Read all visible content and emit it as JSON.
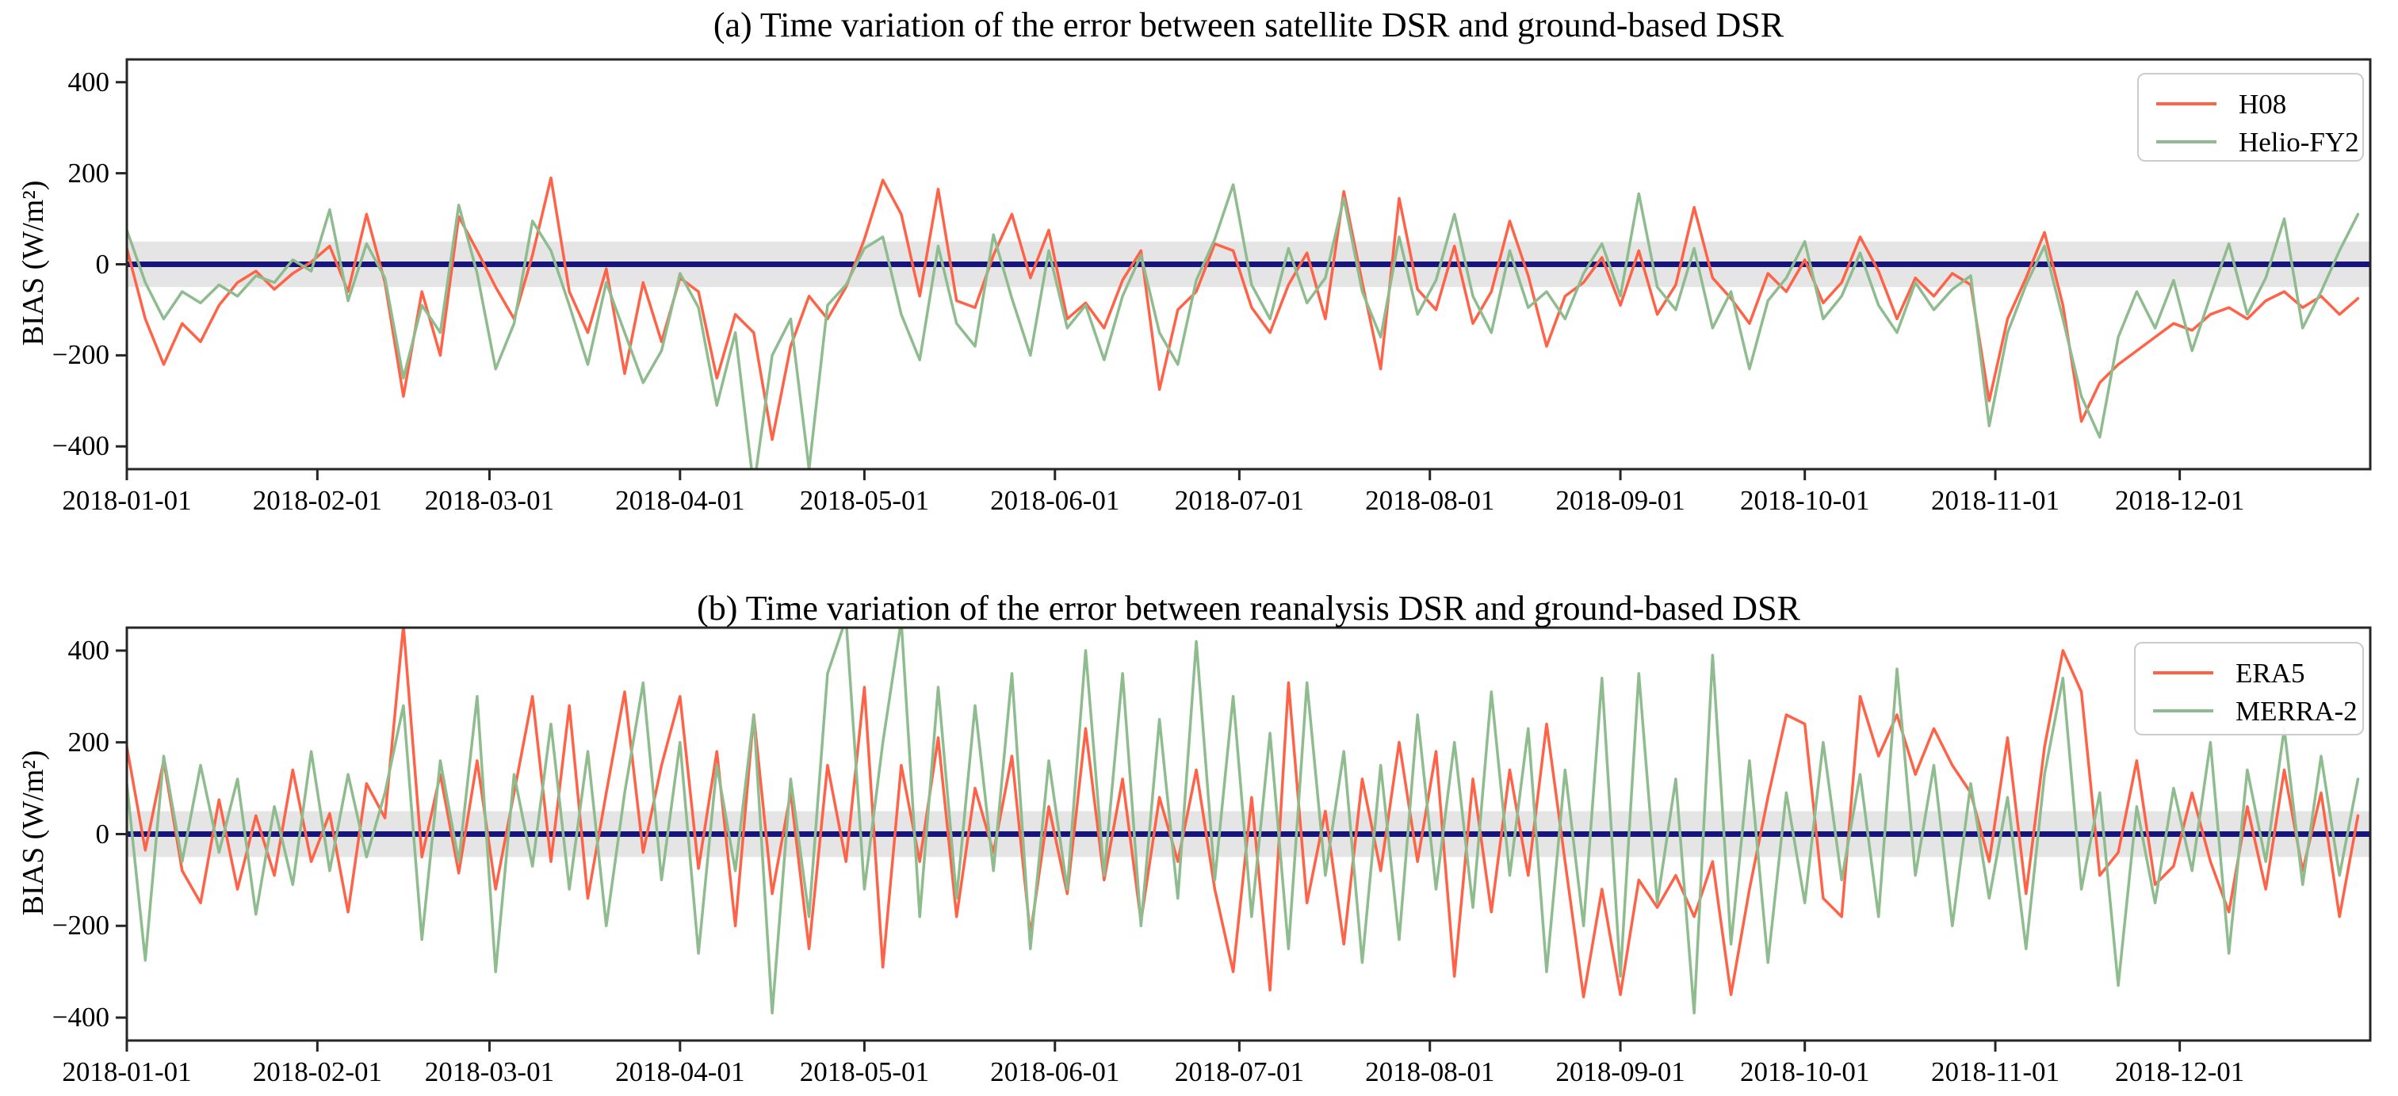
{
  "figure": {
    "background_color": "#ffffff",
    "axis_color": "#262626"
  },
  "chart_data": [
    {
      "type": "line",
      "panel": "a",
      "title": "(a) Time variation of the error between satellite DSR and ground-based DSR",
      "ylabel": "BIAS (W/m²)",
      "ylim": [
        -450,
        450
      ],
      "yticks": [
        {
          "value": 400,
          "label": "400"
        },
        {
          "value": 200,
          "label": "200"
        },
        {
          "value": 0,
          "label": "0"
        },
        {
          "value": -200,
          "label": "−200"
        },
        {
          "value": -400,
          "label": "−400"
        }
      ],
      "xlim_days": [
        1,
        366
      ],
      "xticks": [
        {
          "day": 1,
          "label": "2018-01-01"
        },
        {
          "day": 32,
          "label": "2018-02-01"
        },
        {
          "day": 60,
          "label": "2018-03-01"
        },
        {
          "day": 91,
          "label": "2018-04-01"
        },
        {
          "day": 121,
          "label": "2018-05-01"
        },
        {
          "day": 152,
          "label": "2018-06-01"
        },
        {
          "day": 182,
          "label": "2018-07-01"
        },
        {
          "day": 213,
          "label": "2018-08-01"
        },
        {
          "day": 244,
          "label": "2018-09-01"
        },
        {
          "day": 274,
          "label": "2018-10-01"
        },
        {
          "day": 305,
          "label": "2018-11-01"
        },
        {
          "day": 335,
          "label": "2018-12-01"
        }
      ],
      "grid": false,
      "legend_position": "upper right",
      "zero_line": {
        "value": 0,
        "color": "#15157d"
      },
      "tolerance_band": {
        "low": -50,
        "high": 50,
        "color": "#d3d3d3",
        "opacity": 0.6
      },
      "x_start_day": 1,
      "x_step_days": 3,
      "series": [
        {
          "name": "H08",
          "color": "#ff6347",
          "values": [
            35,
            -120,
            -220,
            -130,
            -170,
            -90,
            -40,
            -15,
            -55,
            -20,
            5,
            40,
            -60,
            110,
            -40,
            -290,
            -60,
            -200,
            105,
            30,
            -50,
            -120,
            20,
            190,
            -60,
            -150,
            -10,
            -240,
            -40,
            -170,
            -30,
            -60,
            -250,
            -110,
            -150,
            -385,
            -180,
            -70,
            -120,
            -50,
            55,
            185,
            110,
            -70,
            165,
            -80,
            -95,
            20,
            110,
            -30,
            75,
            -120,
            -85,
            -140,
            -35,
            30,
            -275,
            -100,
            -60,
            45,
            30,
            -95,
            -150,
            -45,
            25,
            -120,
            160,
            -40,
            -230,
            145,
            -55,
            -100,
            40,
            -130,
            -60,
            95,
            -25,
            -180,
            -70,
            -40,
            15,
            -90,
            30,
            -110,
            -45,
            125,
            -30,
            -75,
            -130,
            -20,
            -60,
            10,
            -85,
            -40,
            60,
            -15,
            -120,
            -30,
            -70,
            -20,
            -45,
            -300,
            -120,
            -30,
            70,
            -90,
            -345,
            -260,
            -220,
            -190,
            -160,
            -130,
            -145,
            -110,
            -95,
            -120,
            -80,
            -60,
            -95,
            -70,
            -110,
            -75
          ]
        },
        {
          "name": "Helio-FY2",
          "color": "#8fbc8f",
          "values": [
            75,
            -40,
            -120,
            -60,
            -85,
            -45,
            -70,
            -25,
            -40,
            10,
            -15,
            120,
            -80,
            45,
            -30,
            -250,
            -90,
            -150,
            130,
            -20,
            -230,
            -130,
            95,
            30,
            -90,
            -220,
            -40,
            -150,
            -260,
            -190,
            -20,
            -95,
            -310,
            -150,
            -490,
            -200,
            -120,
            -450,
            -90,
            -45,
            35,
            60,
            -110,
            -210,
            40,
            -130,
            -180,
            65,
            -75,
            -200,
            30,
            -140,
            -90,
            -210,
            -70,
            20,
            -150,
            -220,
            -35,
            55,
            175,
            -45,
            -120,
            35,
            -85,
            -30,
            145,
            -60,
            -160,
            60,
            -110,
            -35,
            110,
            -70,
            -150,
            30,
            -95,
            -60,
            -120,
            -20,
            45,
            -70,
            155,
            -50,
            -100,
            35,
            -140,
            -60,
            -230,
            -80,
            -30,
            50,
            -120,
            -70,
            25,
            -90,
            -150,
            -40,
            -100,
            -55,
            -25,
            -355,
            -150,
            -45,
            40,
            -120,
            -290,
            -380,
            -160,
            -60,
            -140,
            -35,
            -190,
            -70,
            45,
            -110,
            -30,
            100,
            -140,
            -60,
            30,
            110
          ]
        }
      ]
    },
    {
      "type": "line",
      "panel": "b",
      "title": "(b) Time variation of the error between reanalysis DSR and ground-based DSR",
      "ylabel": "BIAS (W/m²)",
      "ylim": [
        -450,
        450
      ],
      "yticks": [
        {
          "value": 400,
          "label": "400"
        },
        {
          "value": 200,
          "label": "200"
        },
        {
          "value": 0,
          "label": "0"
        },
        {
          "value": -200,
          "label": "−200"
        },
        {
          "value": -400,
          "label": "−400"
        }
      ],
      "xlim_days": [
        1,
        366
      ],
      "xticks": [
        {
          "day": 1,
          "label": "2018-01-01"
        },
        {
          "day": 32,
          "label": "2018-02-01"
        },
        {
          "day": 60,
          "label": "2018-03-01"
        },
        {
          "day": 91,
          "label": "2018-04-01"
        },
        {
          "day": 121,
          "label": "2018-05-01"
        },
        {
          "day": 152,
          "label": "2018-06-01"
        },
        {
          "day": 182,
          "label": "2018-07-01"
        },
        {
          "day": 213,
          "label": "2018-08-01"
        },
        {
          "day": 244,
          "label": "2018-09-01"
        },
        {
          "day": 274,
          "label": "2018-10-01"
        },
        {
          "day": 305,
          "label": "2018-11-01"
        },
        {
          "day": 335,
          "label": "2018-12-01"
        }
      ],
      "grid": false,
      "legend_position": "upper right",
      "zero_line": {
        "value": 0,
        "color": "#15157d"
      },
      "tolerance_band": {
        "low": -50,
        "high": 50,
        "color": "#d3d3d3",
        "opacity": 0.6
      },
      "x_start_day": 1,
      "x_step_days": 3,
      "series": [
        {
          "name": "ERA5",
          "color": "#ff6347",
          "values": [
            190,
            -35,
            160,
            -80,
            -150,
            75,
            -120,
            40,
            -90,
            140,
            -60,
            45,
            -170,
            110,
            35,
            455,
            -50,
            130,
            -85,
            160,
            -120,
            90,
            300,
            -60,
            280,
            -140,
            90,
            310,
            -40,
            150,
            300,
            -75,
            180,
            -200,
            260,
            -130,
            90,
            -250,
            150,
            -60,
            320,
            -290,
            150,
            -60,
            210,
            -180,
            100,
            -40,
            170,
            -220,
            60,
            -130,
            230,
            -100,
            120,
            -190,
            80,
            -60,
            140,
            -120,
            -300,
            80,
            -340,
            330,
            -150,
            50,
            -240,
            120,
            -80,
            200,
            -60,
            180,
            -310,
            120,
            -170,
            140,
            -90,
            240,
            -60,
            -355,
            -120,
            -350,
            -100,
            -160,
            -90,
            -180,
            -60,
            -350,
            -120,
            80,
            260,
            240,
            -140,
            -180,
            300,
            170,
            260,
            130,
            230,
            150,
            90,
            -60,
            210,
            -130,
            190,
            400,
            310,
            -90,
            -40,
            160,
            -110,
            -70,
            90,
            -60,
            -170,
            60,
            -120,
            140,
            -80,
            90,
            -180,
            40
          ]
        },
        {
          "name": "MERRA-2",
          "color": "#8fbc8f",
          "values": [
            110,
            -275,
            170,
            -60,
            150,
            -40,
            120,
            -175,
            60,
            -110,
            180,
            -80,
            130,
            -50,
            90,
            280,
            -230,
            160,
            -60,
            300,
            -300,
            130,
            -70,
            240,
            -120,
            180,
            -200,
            90,
            330,
            -100,
            200,
            -260,
            150,
            -80,
            260,
            -390,
            120,
            -180,
            350,
            470,
            -120,
            200,
            465,
            -180,
            320,
            -140,
            280,
            -80,
            350,
            -250,
            160,
            -120,
            400,
            -90,
            350,
            -200,
            250,
            -140,
            420,
            -100,
            300,
            -180,
            220,
            -250,
            330,
            -90,
            180,
            -280,
            150,
            -230,
            260,
            -120,
            200,
            -160,
            310,
            -90,
            230,
            -300,
            140,
            -200,
            340,
            -310,
            350,
            -150,
            120,
            -390,
            390,
            -240,
            160,
            -280,
            90,
            -150,
            200,
            -100,
            130,
            -180,
            360,
            -90,
            150,
            -200,
            110,
            -140,
            80,
            -250,
            130,
            340,
            -120,
            90,
            -330,
            60,
            -150,
            100,
            -80,
            200,
            -260,
            140,
            -60,
            230,
            -110,
            170,
            -90,
            120
          ]
        }
      ]
    }
  ]
}
